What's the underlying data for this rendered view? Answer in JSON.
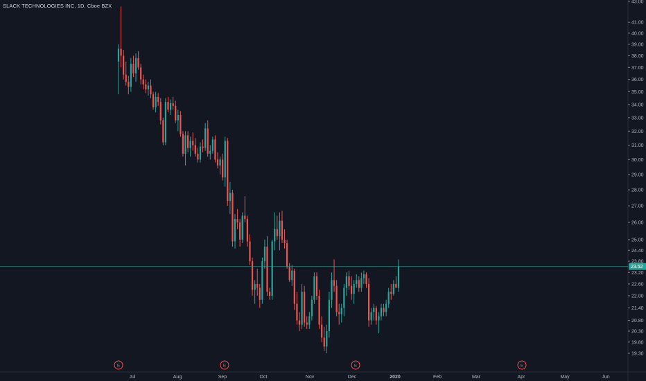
{
  "header": {
    "title": "SLACK TECHNOLOGIES INC, 1D, Cboe BZX"
  },
  "colors": {
    "background": "#131722",
    "up": "#26a69a",
    "down": "#ef5350",
    "axis_text": "#b2b5be",
    "price_line": "#26a69a",
    "earnings": "#ef5350"
  },
  "chart_data": {
    "type": "candlestick",
    "title": "SLACK TECHNOLOGIES INC, 1D, Cboe BZX",
    "timeframe": "1D",
    "exchange": "Cboe BZX",
    "last_price": "23.52",
    "y_ticks": [
      "43.00",
      "41.00",
      "40.00",
      "39.00",
      "38.00",
      "37.00",
      "36.00",
      "35.00",
      "34.00",
      "33.00",
      "32.00",
      "31.00",
      "30.00",
      "29.00",
      "28.00",
      "27.00",
      "26.00",
      "25.00",
      "24.40",
      "23.80",
      "23.20",
      "22.60",
      "22.00",
      "21.40",
      "20.80",
      "20.30",
      "19.80",
      "19.30"
    ],
    "x_ticks": [
      "Jul",
      "Aug",
      "Sep",
      "Oct",
      "Nov",
      "Dec",
      "2020",
      "Feb",
      "Mar",
      "Apr",
      "May",
      "Jun"
    ],
    "earnings_markers": [
      "E",
      "E",
      "E",
      "E"
    ],
    "log_scale": true,
    "grid": false,
    "series": [
      {
        "candles": [
          [
            37.5,
            39.0,
            34.8,
            38.6
          ],
          [
            38.6,
            42.5,
            37.0,
            38.0
          ],
          [
            38.0,
            38.5,
            36.0,
            36.4
          ],
          [
            36.4,
            37.5,
            35.5,
            35.8
          ],
          [
            35.8,
            36.3,
            34.8,
            35.4
          ],
          [
            35.4,
            37.8,
            35.0,
            37.3
          ],
          [
            37.3,
            38.0,
            36.2,
            36.5
          ],
          [
            36.5,
            38.2,
            35.8,
            37.8
          ],
          [
            37.8,
            38.4,
            36.8,
            37.0
          ],
          [
            37.0,
            37.3,
            35.6,
            36.0
          ],
          [
            36.0,
            36.4,
            35.2,
            35.6
          ],
          [
            35.6,
            36.0,
            34.9,
            35.2
          ],
          [
            35.2,
            35.8,
            34.7,
            35.5
          ],
          [
            35.5,
            36.0,
            34.5,
            34.8
          ],
          [
            34.8,
            35.0,
            33.6,
            33.8
          ],
          [
            33.8,
            35.0,
            33.4,
            34.6
          ],
          [
            34.6,
            34.9,
            33.9,
            34.2
          ],
          [
            34.2,
            34.5,
            32.5,
            32.8
          ],
          [
            32.8,
            33.0,
            31.0,
            31.2
          ],
          [
            31.2,
            34.5,
            31.0,
            34.2
          ],
          [
            34.2,
            34.6,
            33.4,
            33.6
          ],
          [
            33.6,
            34.4,
            33.2,
            34.1
          ],
          [
            34.1,
            34.6,
            33.6,
            33.9
          ],
          [
            33.9,
            34.3,
            32.6,
            32.8
          ],
          [
            32.8,
            33.6,
            32.0,
            33.2
          ],
          [
            33.2,
            33.5,
            31.6,
            31.8
          ],
          [
            31.8,
            32.0,
            30.2,
            30.4
          ],
          [
            30.4,
            32.0,
            29.6,
            31.7
          ],
          [
            31.7,
            32.0,
            30.5,
            30.8
          ],
          [
            30.8,
            31.6,
            30.2,
            31.3
          ],
          [
            31.3,
            31.9,
            30.6,
            31.0
          ],
          [
            31.0,
            31.5,
            30.2,
            30.4
          ],
          [
            30.4,
            30.8,
            29.8,
            30.0
          ],
          [
            30.0,
            31.2,
            29.8,
            30.9
          ],
          [
            30.9,
            31.4,
            30.5,
            30.8
          ],
          [
            30.8,
            32.6,
            30.6,
            32.2
          ],
          [
            32.2,
            32.8,
            30.2,
            30.4
          ],
          [
            30.4,
            31.0,
            30.0,
            30.6
          ],
          [
            30.6,
            31.6,
            30.4,
            31.4
          ],
          [
            31.4,
            31.7,
            29.8,
            30.0
          ],
          [
            30.0,
            30.5,
            29.4,
            29.6
          ],
          [
            29.6,
            30.2,
            29.0,
            30.0
          ],
          [
            30.0,
            30.4,
            28.6,
            28.8
          ],
          [
            28.8,
            31.6,
            28.2,
            31.3
          ],
          [
            31.3,
            31.5,
            27.0,
            27.3
          ],
          [
            27.3,
            28.5,
            26.5,
            27.8
          ],
          [
            27.8,
            28.0,
            24.6,
            24.9
          ],
          [
            24.9,
            26.5,
            24.5,
            26.2
          ],
          [
            26.2,
            26.8,
            25.6,
            26.0
          ],
          [
            26.0,
            26.2,
            24.6,
            25.0
          ],
          [
            25.0,
            26.6,
            24.8,
            26.4
          ],
          [
            26.4,
            27.6,
            26.0,
            26.2
          ],
          [
            26.2,
            26.4,
            24.6,
            24.9
          ],
          [
            24.9,
            25.3,
            23.6,
            23.8
          ],
          [
            23.8,
            24.0,
            22.0,
            22.3
          ],
          [
            22.3,
            22.8,
            21.6,
            22.6
          ],
          [
            22.6,
            23.4,
            22.0,
            22.4
          ],
          [
            22.4,
            22.6,
            21.4,
            21.8
          ],
          [
            21.8,
            24.0,
            21.6,
            23.8
          ],
          [
            23.8,
            25.0,
            23.4,
            24.6
          ],
          [
            24.6,
            25.2,
            22.0,
            22.2
          ],
          [
            22.2,
            22.4,
            21.8,
            22.0
          ],
          [
            22.0,
            25.0,
            21.8,
            24.9
          ],
          [
            24.9,
            26.6,
            24.4,
            25.6
          ],
          [
            25.6,
            26.4,
            25.0,
            25.2
          ],
          [
            25.2,
            26.6,
            24.4,
            26.1
          ],
          [
            26.1,
            26.7,
            24.8,
            25.0
          ],
          [
            25.0,
            25.6,
            24.5,
            24.8
          ],
          [
            24.8,
            25.0,
            23.4,
            23.5
          ],
          [
            23.5,
            23.7,
            22.7,
            22.8
          ],
          [
            22.8,
            23.6,
            22.5,
            23.3
          ],
          [
            23.3,
            23.4,
            21.3,
            21.6
          ],
          [
            21.6,
            22.2,
            20.6,
            20.8
          ],
          [
            20.8,
            21.2,
            20.3,
            20.6
          ],
          [
            20.6,
            22.6,
            20.4,
            22.2
          ],
          [
            22.2,
            22.5,
            20.5,
            20.7
          ],
          [
            20.7,
            21.0,
            20.4,
            20.6
          ],
          [
            20.6,
            21.2,
            20.4,
            21.0
          ],
          [
            21.0,
            22.0,
            20.8,
            21.8
          ],
          [
            21.8,
            23.2,
            21.6,
            23.0
          ],
          [
            23.0,
            23.2,
            21.8,
            22.0
          ],
          [
            22.0,
            22.3,
            20.4,
            20.6
          ],
          [
            20.6,
            21.0,
            19.8,
            20.0
          ],
          [
            20.0,
            20.5,
            19.4,
            19.6
          ],
          [
            19.6,
            20.6,
            19.3,
            20.3
          ],
          [
            20.3,
            22.2,
            20.0,
            21.8
          ],
          [
            21.8,
            23.2,
            21.4,
            22.8
          ],
          [
            22.8,
            23.9,
            22.2,
            22.5
          ],
          [
            22.5,
            22.8,
            21.0,
            21.2
          ],
          [
            21.2,
            21.6,
            20.6,
            21.1
          ],
          [
            21.1,
            21.6,
            20.7,
            21.4
          ],
          [
            21.4,
            22.6,
            21.0,
            22.4
          ],
          [
            22.4,
            23.2,
            22.0,
            23.0
          ],
          [
            23.0,
            23.3,
            22.3,
            22.5
          ],
          [
            22.5,
            23.0,
            21.8,
            22.1
          ],
          [
            22.1,
            22.8,
            21.6,
            22.6
          ],
          [
            22.6,
            23.1,
            22.4,
            22.8
          ],
          [
            22.8,
            23.0,
            22.2,
            22.4
          ],
          [
            22.4,
            23.2,
            22.2,
            22.9
          ],
          [
            22.9,
            23.3,
            22.6,
            23.1
          ],
          [
            23.1,
            23.2,
            22.4,
            22.6
          ],
          [
            22.6,
            22.9,
            20.5,
            20.8
          ],
          [
            20.8,
            21.4,
            20.6,
            21.2
          ],
          [
            21.2,
            21.6,
            20.8,
            21.4
          ],
          [
            21.4,
            21.5,
            20.6,
            20.8
          ],
          [
            20.8,
            21.2,
            20.2,
            21.0
          ],
          [
            21.0,
            21.6,
            20.8,
            21.4
          ],
          [
            21.4,
            21.6,
            21.0,
            21.2
          ],
          [
            21.2,
            21.8,
            21.0,
            21.6
          ],
          [
            21.6,
            22.4,
            21.4,
            22.2
          ],
          [
            22.2,
            22.6,
            21.8,
            22.1
          ],
          [
            22.1,
            22.8,
            22.0,
            22.6
          ],
          [
            22.6,
            23.0,
            22.4,
            22.4
          ],
          [
            22.4,
            23.9,
            22.2,
            23.52
          ]
        ]
      }
    ]
  }
}
